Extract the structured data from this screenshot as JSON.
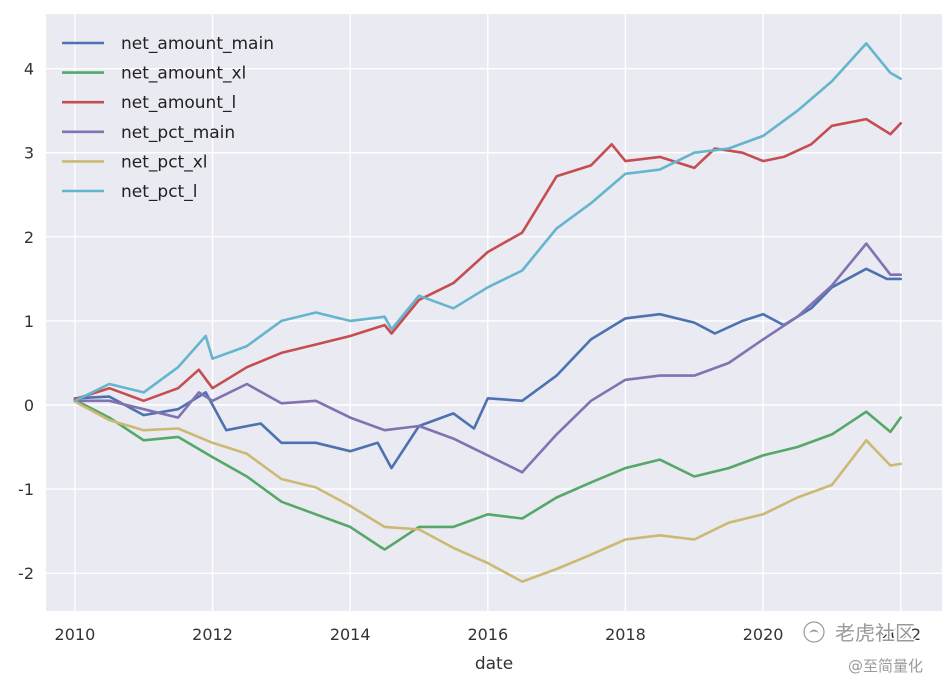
{
  "chart_data": {
    "type": "line",
    "xlabel": "date",
    "ylabel": "",
    "xlim": [
      2009.58,
      2022.6
    ],
    "ylim": [
      -2.45,
      4.65
    ],
    "xticks": [
      2010,
      2012,
      2014,
      2016,
      2018,
      2020,
      2022
    ],
    "yticks": [
      -2,
      -1,
      0,
      1,
      2,
      3,
      4
    ],
    "grid": true,
    "legend_position": "top-left",
    "series": [
      {
        "name": "net_amount_main",
        "color": "#4c72b0",
        "points": [
          [
            2010.0,
            0.08
          ],
          [
            2010.5,
            0.1
          ],
          [
            2011.0,
            -0.12
          ],
          [
            2011.5,
            -0.05
          ],
          [
            2011.9,
            0.15
          ],
          [
            2012.2,
            -0.3
          ],
          [
            2012.7,
            -0.22
          ],
          [
            2013.0,
            -0.45
          ],
          [
            2013.5,
            -0.45
          ],
          [
            2014.0,
            -0.55
          ],
          [
            2014.4,
            -0.45
          ],
          [
            2014.6,
            -0.75
          ],
          [
            2015.0,
            -0.25
          ],
          [
            2015.5,
            -0.1
          ],
          [
            2015.8,
            -0.28
          ],
          [
            2016.0,
            0.08
          ],
          [
            2016.5,
            0.05
          ],
          [
            2017.0,
            0.35
          ],
          [
            2017.5,
            0.78
          ],
          [
            2018.0,
            1.03
          ],
          [
            2018.5,
            1.08
          ],
          [
            2019.0,
            0.98
          ],
          [
            2019.3,
            0.85
          ],
          [
            2019.7,
            1.0
          ],
          [
            2020.0,
            1.08
          ],
          [
            2020.3,
            0.95
          ],
          [
            2020.7,
            1.15
          ],
          [
            2021.0,
            1.4
          ],
          [
            2021.5,
            1.62
          ],
          [
            2021.8,
            1.5
          ],
          [
            2022.0,
            1.5
          ]
        ]
      },
      {
        "name": "net_amount_xl",
        "color": "#55a868",
        "points": [
          [
            2010.0,
            0.06
          ],
          [
            2010.5,
            -0.15
          ],
          [
            2011.0,
            -0.42
          ],
          [
            2011.5,
            -0.38
          ],
          [
            2012.0,
            -0.62
          ],
          [
            2012.5,
            -0.85
          ],
          [
            2013.0,
            -1.15
          ],
          [
            2013.5,
            -1.3
          ],
          [
            2014.0,
            -1.45
          ],
          [
            2014.5,
            -1.72
          ],
          [
            2015.0,
            -1.45
          ],
          [
            2015.5,
            -1.45
          ],
          [
            2016.0,
            -1.3
          ],
          [
            2016.5,
            -1.35
          ],
          [
            2017.0,
            -1.1
          ],
          [
            2017.5,
            -0.92
          ],
          [
            2018.0,
            -0.75
          ],
          [
            2018.5,
            -0.65
          ],
          [
            2019.0,
            -0.85
          ],
          [
            2019.5,
            -0.75
          ],
          [
            2020.0,
            -0.6
          ],
          [
            2020.5,
            -0.5
          ],
          [
            2021.0,
            -0.35
          ],
          [
            2021.5,
            -0.08
          ],
          [
            2021.85,
            -0.32
          ],
          [
            2022.0,
            -0.15
          ]
        ]
      },
      {
        "name": "net_amount_l",
        "color": "#c44e52",
        "points": [
          [
            2010.0,
            0.07
          ],
          [
            2010.5,
            0.2
          ],
          [
            2011.0,
            0.05
          ],
          [
            2011.5,
            0.2
          ],
          [
            2011.8,
            0.42
          ],
          [
            2012.0,
            0.2
          ],
          [
            2012.5,
            0.45
          ],
          [
            2013.0,
            0.62
          ],
          [
            2013.5,
            0.72
          ],
          [
            2014.0,
            0.82
          ],
          [
            2014.5,
            0.95
          ],
          [
            2014.6,
            0.85
          ],
          [
            2015.0,
            1.25
          ],
          [
            2015.5,
            1.45
          ],
          [
            2016.0,
            1.82
          ],
          [
            2016.5,
            2.05
          ],
          [
            2017.0,
            2.72
          ],
          [
            2017.5,
            2.85
          ],
          [
            2017.8,
            3.1
          ],
          [
            2018.0,
            2.9
          ],
          [
            2018.5,
            2.95
          ],
          [
            2019.0,
            2.82
          ],
          [
            2019.3,
            3.05
          ],
          [
            2019.7,
            3.0
          ],
          [
            2020.0,
            2.9
          ],
          [
            2020.3,
            2.95
          ],
          [
            2020.7,
            3.1
          ],
          [
            2021.0,
            3.32
          ],
          [
            2021.5,
            3.4
          ],
          [
            2021.85,
            3.22
          ],
          [
            2022.0,
            3.35
          ]
        ]
      },
      {
        "name": "net_pct_main",
        "color": "#8172b2",
        "points": [
          [
            2010.0,
            0.05
          ],
          [
            2010.5,
            0.05
          ],
          [
            2011.0,
            -0.05
          ],
          [
            2011.5,
            -0.15
          ],
          [
            2011.8,
            0.15
          ],
          [
            2012.0,
            0.05
          ],
          [
            2012.5,
            0.25
          ],
          [
            2013.0,
            0.02
          ],
          [
            2013.5,
            0.05
          ],
          [
            2014.0,
            -0.15
          ],
          [
            2014.5,
            -0.3
          ],
          [
            2015.0,
            -0.25
          ],
          [
            2015.5,
            -0.4
          ],
          [
            2016.0,
            -0.6
          ],
          [
            2016.5,
            -0.8
          ],
          [
            2017.0,
            -0.35
          ],
          [
            2017.5,
            0.05
          ],
          [
            2018.0,
            0.3
          ],
          [
            2018.5,
            0.35
          ],
          [
            2019.0,
            0.35
          ],
          [
            2019.5,
            0.5
          ],
          [
            2020.0,
            0.78
          ],
          [
            2020.5,
            1.05
          ],
          [
            2021.0,
            1.42
          ],
          [
            2021.5,
            1.92
          ],
          [
            2021.85,
            1.55
          ],
          [
            2022.0,
            1.55
          ]
        ]
      },
      {
        "name": "net_pct_xl",
        "color": "#ccb974",
        "points": [
          [
            2010.0,
            0.04
          ],
          [
            2010.5,
            -0.18
          ],
          [
            2011.0,
            -0.3
          ],
          [
            2011.5,
            -0.28
          ],
          [
            2012.0,
            -0.45
          ],
          [
            2012.5,
            -0.58
          ],
          [
            2013.0,
            -0.88
          ],
          [
            2013.5,
            -0.98
          ],
          [
            2014.0,
            -1.2
          ],
          [
            2014.5,
            -1.45
          ],
          [
            2015.0,
            -1.48
          ],
          [
            2015.5,
            -1.7
          ],
          [
            2016.0,
            -1.88
          ],
          [
            2016.5,
            -2.1
          ],
          [
            2017.0,
            -1.95
          ],
          [
            2017.5,
            -1.78
          ],
          [
            2018.0,
            -1.6
          ],
          [
            2018.5,
            -1.55
          ],
          [
            2019.0,
            -1.6
          ],
          [
            2019.5,
            -1.4
          ],
          [
            2020.0,
            -1.3
          ],
          [
            2020.5,
            -1.1
          ],
          [
            2021.0,
            -0.95
          ],
          [
            2021.5,
            -0.42
          ],
          [
            2021.85,
            -0.72
          ],
          [
            2022.0,
            -0.7
          ]
        ]
      },
      {
        "name": "net_pct_l",
        "color": "#64b5cd",
        "points": [
          [
            2010.0,
            0.05
          ],
          [
            2010.5,
            0.25
          ],
          [
            2011.0,
            0.15
          ],
          [
            2011.5,
            0.45
          ],
          [
            2011.9,
            0.82
          ],
          [
            2012.0,
            0.55
          ],
          [
            2012.5,
            0.7
          ],
          [
            2013.0,
            1.0
          ],
          [
            2013.5,
            1.1
          ],
          [
            2014.0,
            1.0
          ],
          [
            2014.5,
            1.05
          ],
          [
            2014.6,
            0.9
          ],
          [
            2015.0,
            1.3
          ],
          [
            2015.5,
            1.15
          ],
          [
            2016.0,
            1.4
          ],
          [
            2016.5,
            1.6
          ],
          [
            2017.0,
            2.1
          ],
          [
            2017.5,
            2.4
          ],
          [
            2018.0,
            2.75
          ],
          [
            2018.5,
            2.8
          ],
          [
            2019.0,
            3.0
          ],
          [
            2019.5,
            3.05
          ],
          [
            2020.0,
            3.2
          ],
          [
            2020.5,
            3.5
          ],
          [
            2021.0,
            3.85
          ],
          [
            2021.5,
            4.3
          ],
          [
            2021.85,
            3.95
          ],
          [
            2022.0,
            3.88
          ]
        ]
      }
    ]
  },
  "watermark": {
    "brand": "老虎社区",
    "author": "@至简量化"
  }
}
